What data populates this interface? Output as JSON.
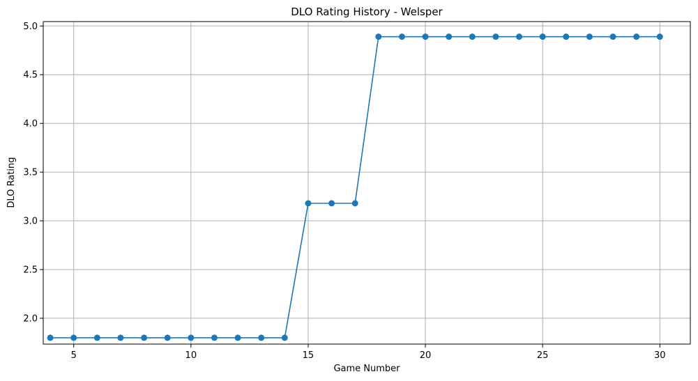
{
  "chart_data": {
    "type": "line",
    "title": "DLO Rating History - Welsper",
    "xlabel": "Game Number",
    "ylabel": "DLO Rating",
    "xlim": [
      3.7,
      31.3
    ],
    "ylim": [
      1.735,
      5.045
    ],
    "xticks": [
      5,
      10,
      15,
      20,
      25,
      30
    ],
    "xtick_labels": [
      "5",
      "10",
      "15",
      "20",
      "25",
      "30"
    ],
    "yticks": [
      2.0,
      2.5,
      3.0,
      3.5,
      4.0,
      4.5,
      5.0
    ],
    "ytick_labels": [
      "2.0",
      "2.5",
      "3.0",
      "3.5",
      "4.0",
      "4.5",
      "5.0"
    ],
    "grid": true,
    "marker": "circle",
    "color": "#1f77b4",
    "series": [
      {
        "x": [
          4,
          5,
          6,
          7,
          8,
          9,
          10,
          11,
          12,
          13,
          14,
          15,
          16,
          17,
          18,
          19,
          20,
          21,
          22,
          23,
          24,
          25,
          26,
          27,
          28,
          29,
          30
        ],
        "y": [
          1.8,
          1.8,
          1.8,
          1.8,
          1.8,
          1.8,
          1.8,
          1.8,
          1.8,
          1.8,
          1.8,
          3.18,
          3.18,
          3.18,
          4.89,
          4.89,
          4.89,
          4.89,
          4.89,
          4.89,
          4.89,
          4.89,
          4.89,
          4.89,
          4.89,
          4.89,
          4.89
        ]
      }
    ]
  }
}
